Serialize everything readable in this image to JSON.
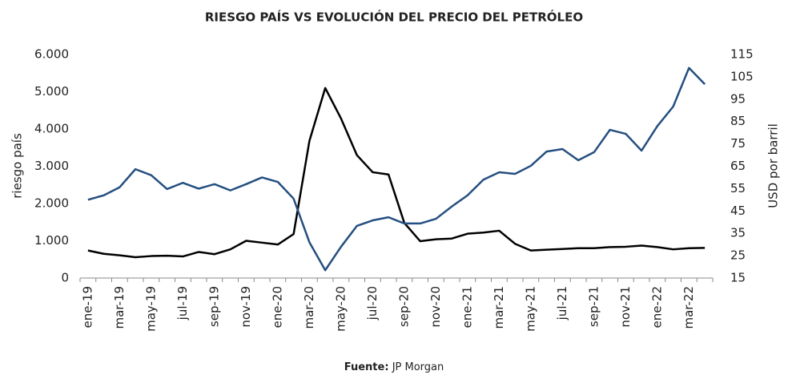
{
  "chart_data": {
    "type": "line",
    "title": "RIESGO PAÍS VS EVOLUCIÓN DEL PRECIO DEL PETRÓLEO",
    "source_label": "Fuente:",
    "source": "JP Morgan",
    "ylabel": "riesgo país",
    "y2label": "USD por barril",
    "categories": [
      "ene-19",
      null,
      "mar-19",
      null,
      "may-19",
      null,
      "jul-19",
      null,
      "sep-19",
      null,
      "nov-19",
      null,
      "ene-20",
      null,
      "mar-20",
      null,
      "may-20",
      null,
      "jul-20",
      null,
      "sep-20",
      null,
      "nov-20",
      null,
      "ene-21",
      null,
      "mar-21",
      null,
      "may-21",
      null,
      "jul-21",
      null,
      "sep-21",
      null,
      "nov-21",
      null,
      "ene-22",
      null,
      "mar-22",
      null
    ],
    "series": [
      {
        "name": "riesgo país",
        "color": "#000000",
        "values": [
          740,
          650,
          610,
          560,
          590,
          600,
          580,
          700,
          640,
          770,
          1000,
          950,
          900,
          1180,
          3680,
          5100,
          4280,
          3300,
          2840,
          2780,
          1480,
          990,
          1040,
          1060,
          1190,
          1220,
          1270,
          920,
          740,
          760,
          780,
          800,
          800,
          830,
          840,
          870,
          830,
          770,
          800,
          810
        ]
      },
      {
        "name": "USD por barril",
        "color": "#254f80",
        "axis": "y2",
        "values": [
          50,
          52,
          55.6,
          63.7,
          61,
          54.8,
          57.6,
          55,
          57,
          54.2,
          57,
          60,
          58,
          50.5,
          31,
          18.5,
          29,
          38.3,
          40.8,
          42.2,
          39.4,
          39.4,
          41.5,
          47,
          52,
          59,
          62.3,
          61.6,
          65.2,
          71.6,
          72.7,
          67.7,
          71.3,
          81.3,
          79.5,
          72,
          83,
          91.7,
          109,
          101.7
        ]
      }
    ],
    "ylim": [
      0,
      6000
    ],
    "yticks": [
      0,
      {
        "value": 1000,
        "label": "1.000"
      },
      {
        "value": 2000,
        "label": "2.000"
      },
      {
        "value": 3000,
        "label": "3.000"
      },
      {
        "value": 4000,
        "label": "4.000"
      },
      {
        "value": 5000,
        "label": "5.000"
      },
      {
        "value": 6000,
        "label": "6.000"
      }
    ],
    "y2lim": [
      15,
      115
    ],
    "y2ticks": [
      15,
      25,
      35,
      45,
      55,
      65,
      75,
      85,
      95,
      105,
      115
    ],
    "grid": false
  }
}
